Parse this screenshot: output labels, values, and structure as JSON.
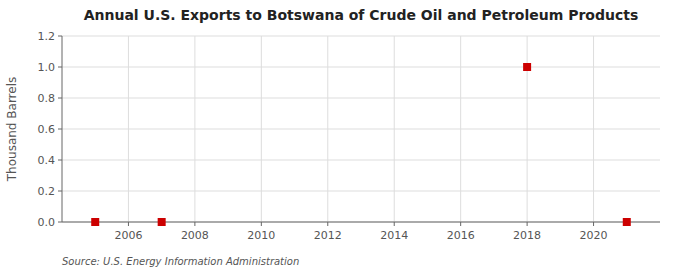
{
  "chart_data": {
    "type": "scatter",
    "title": "Annual U.S. Exports to Botswana of Crude Oil and Petroleum Products",
    "ylabel": "Thousand Barrels",
    "annotations": [
      "Source: U.S. Energy Information Administration"
    ],
    "x": [
      2005,
      2007,
      2018,
      2021
    ],
    "values": [
      0.0,
      0.0,
      1.0,
      0.0
    ],
    "color": "#cc0000",
    "marker": "square",
    "xlim": [
      2004.0,
      2022.0
    ],
    "ylim": [
      0.0,
      1.2
    ],
    "xticks": [
      2006,
      2008,
      2010,
      2012,
      2014,
      2016,
      2018,
      2020
    ],
    "yticks": [
      {
        "value": 0.0,
        "label": "0.0"
      },
      0.2,
      0.4,
      0.6,
      0.8,
      {
        "value": 1.0,
        "label": "1.0"
      },
      1.2
    ],
    "grid": true
  }
}
